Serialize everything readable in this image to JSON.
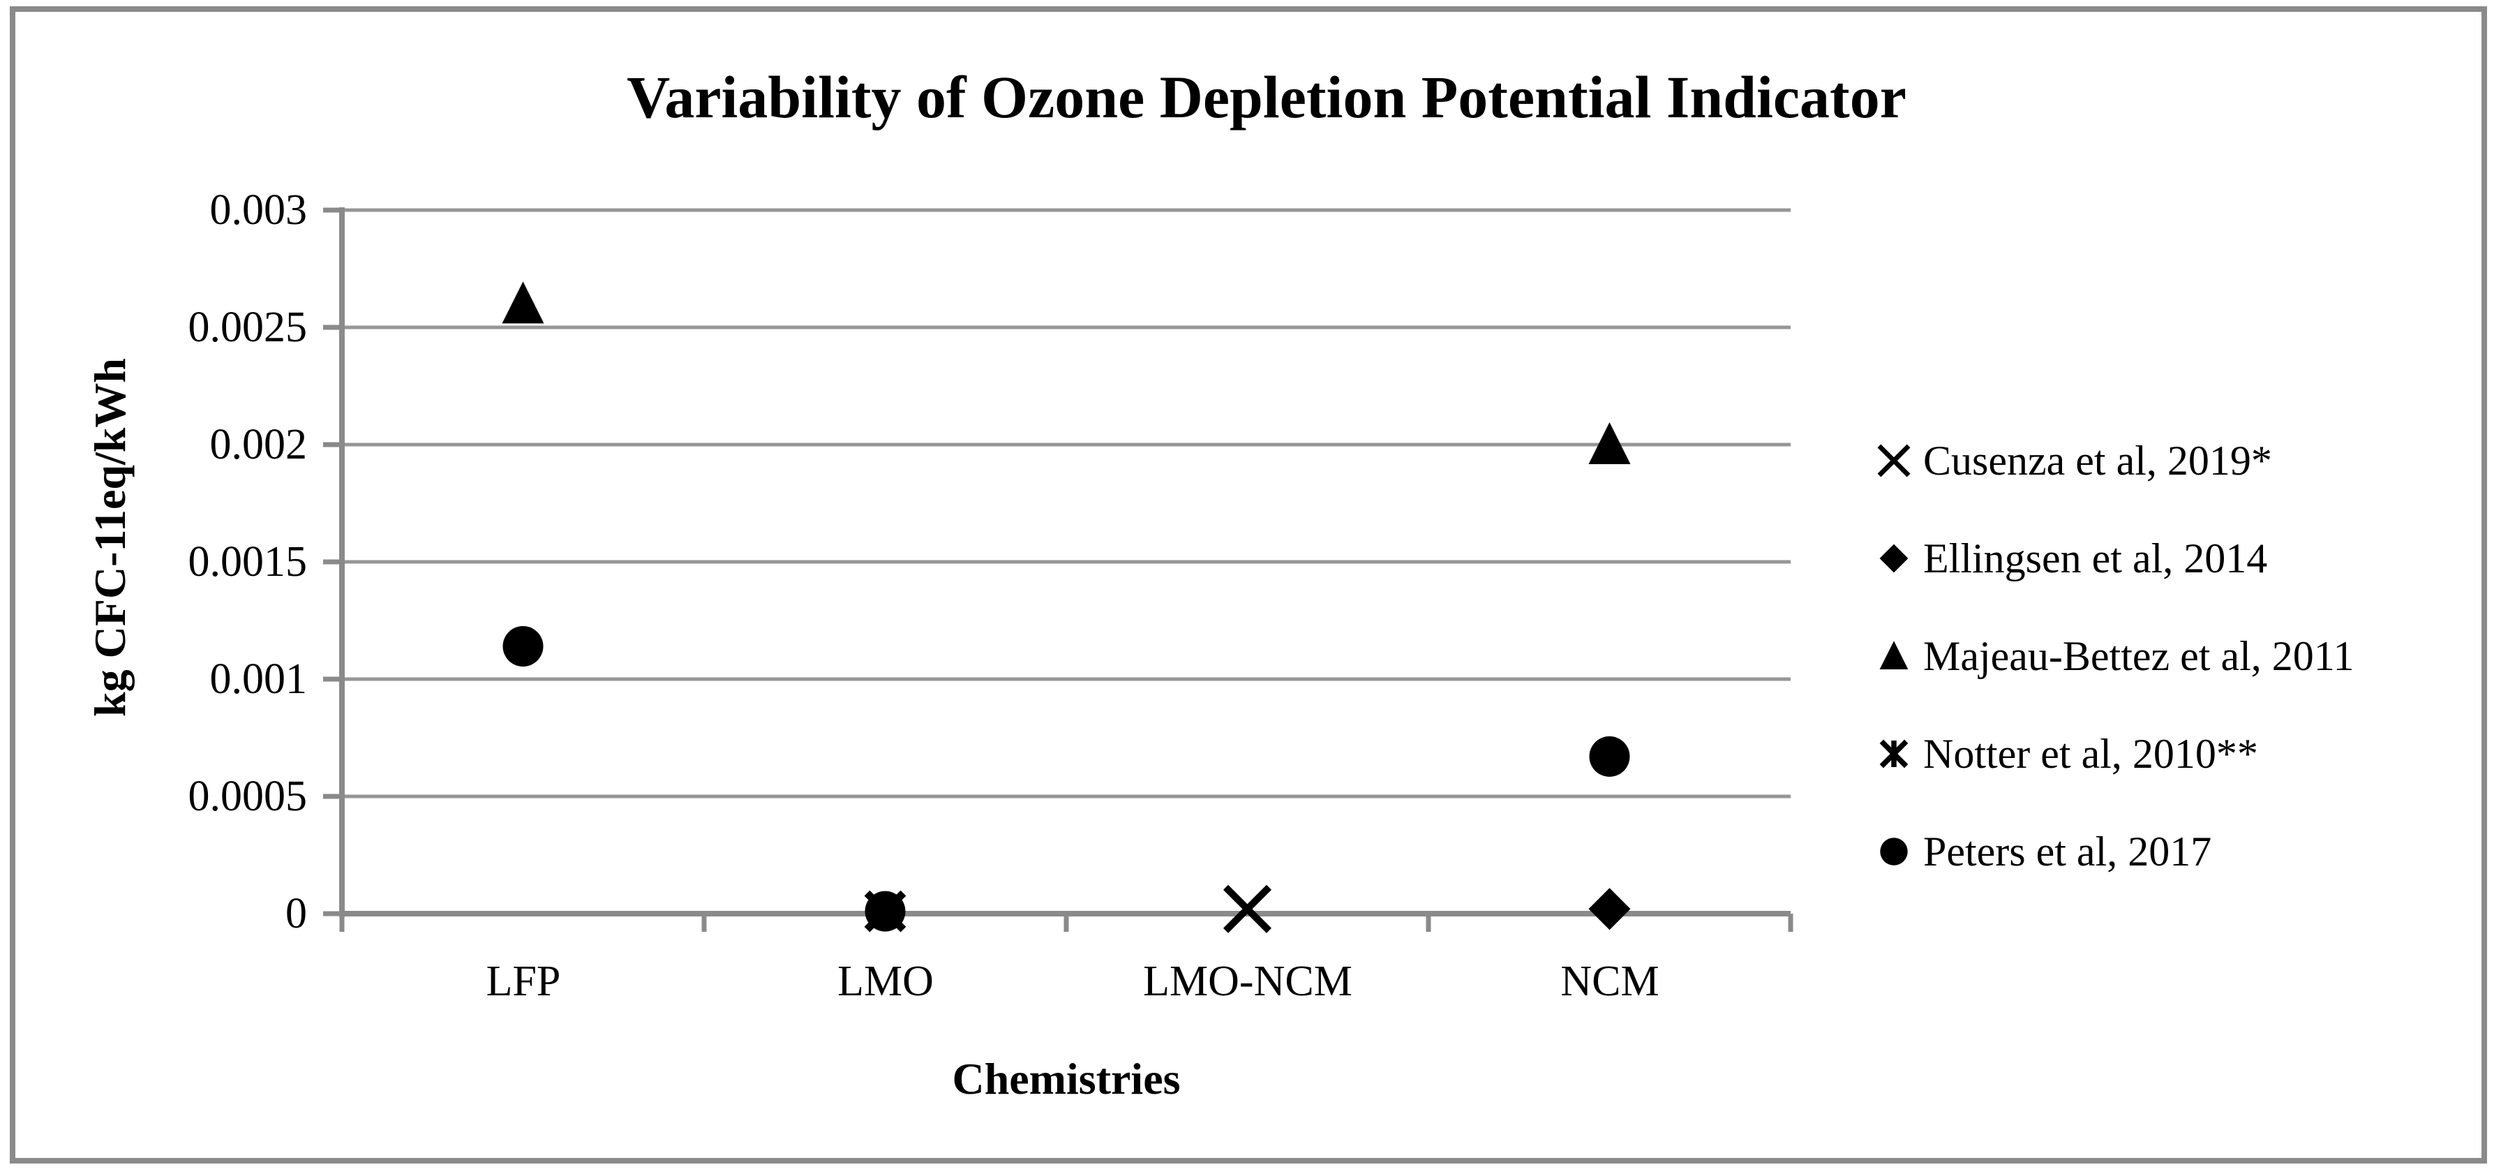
{
  "figure": {
    "title": "Variability of Ozone Depletion Potential Indicator",
    "y_axis_title": "kg CFC-11eq/kWh",
    "x_axis_title": "Chemistries"
  },
  "chart_data": {
    "type": "scatter",
    "title": "Variability of Ozone Depletion Potential Indicator",
    "xlabel": "Chemistries",
    "ylabel": "kg CFC-11eq/kWh",
    "categories": [
      "LFP",
      "LMO",
      "LMO-NCM",
      "NCM"
    ],
    "y_ticks": [
      0.003,
      0.0025,
      0.002,
      0.0015,
      0.001,
      0.0005,
      0
    ],
    "y_tick_labels": [
      "0.003",
      "0.0025",
      "0.002",
      "0.0015",
      "0.001",
      "0.0005",
      "0"
    ],
    "ylim": [
      0,
      0.003
    ],
    "grid": "horizontal",
    "legend_position": "right",
    "series": [
      {
        "name": "Cusenza et al, 2019*",
        "marker": "x-cross",
        "points": [
          {
            "category": "LMO-NCM",
            "value": 2e-05
          }
        ]
      },
      {
        "name": "Ellingsen et al, 2014",
        "marker": "diamond",
        "points": [
          {
            "category": "NCM",
            "value": 2e-05
          }
        ]
      },
      {
        "name": "Majeau-Bettez et al, 2011",
        "marker": "triangle",
        "points": [
          {
            "category": "LFP",
            "value": 0.0026
          },
          {
            "category": "NCM",
            "value": 0.002
          }
        ]
      },
      {
        "name": "Notter et al, 2010**",
        "marker": "star",
        "points": [
          {
            "category": "LMO",
            "value": 1e-05
          }
        ]
      },
      {
        "name": "Peters et al, 2017",
        "marker": "circle",
        "points": [
          {
            "category": "LFP",
            "value": 0.00114
          },
          {
            "category": "LMO",
            "value": 1e-05
          },
          {
            "category": "NCM",
            "value": 0.00067
          }
        ]
      }
    ],
    "colors": {
      "marker": "#000000",
      "gridline": "#969696",
      "axis": "#8a8a8a",
      "border": "#8a8a8a",
      "text": "#000000",
      "background": "#ffffff"
    }
  }
}
